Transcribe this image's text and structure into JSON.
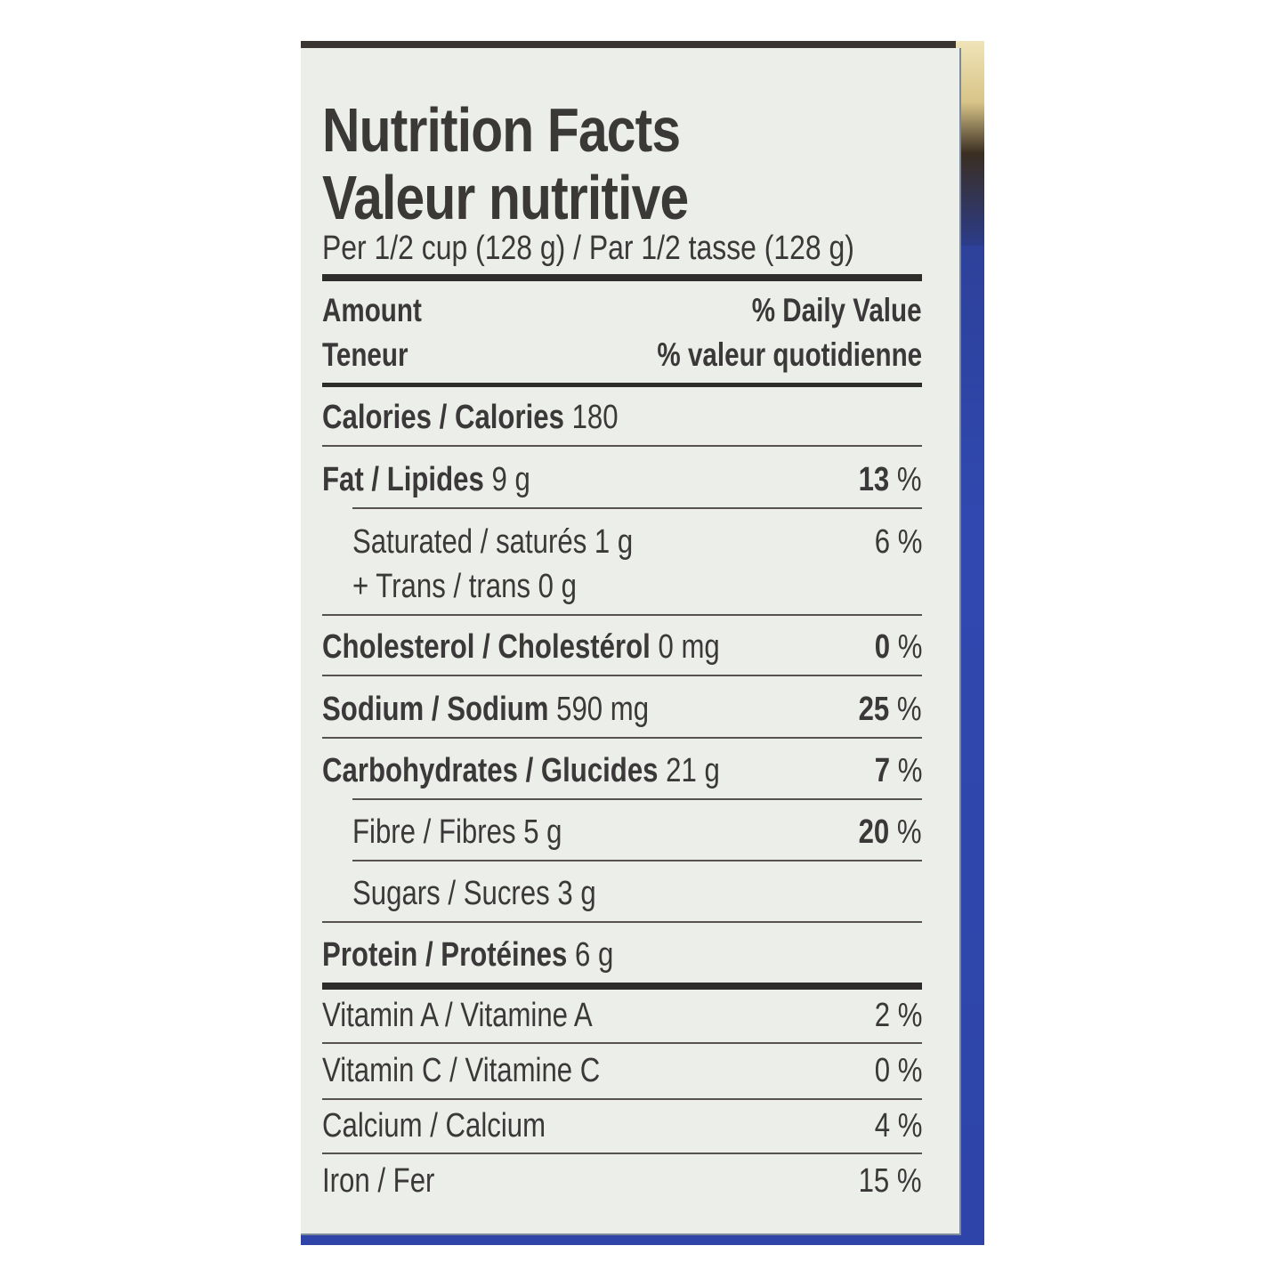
{
  "title_en": "Nutrition Facts",
  "title_fr": "Valeur nutritive",
  "serving": "Per 1/2 cup (128 g) / Par 1/2 tasse (128 g)",
  "header": {
    "amount_en": "Amount",
    "amount_fr": "Teneur",
    "dv_en": "% Daily Value",
    "dv_fr": "% valeur quotidienne"
  },
  "calories": {
    "label": "Calories / Calories",
    "value": "180"
  },
  "fat": {
    "label": "Fat / Lipides",
    "amount": "9 g",
    "dv": "13",
    "pct": "%"
  },
  "saturated": {
    "label": "Saturated / saturés 1 g",
    "dv": "6 %"
  },
  "trans": {
    "label": "+ Trans / trans 0 g"
  },
  "cholesterol": {
    "label": "Cholesterol / Cholestérol",
    "amount": "0 mg",
    "dv": "0",
    "pct": "%"
  },
  "sodium": {
    "label": "Sodium / Sodium",
    "amount": "590 mg",
    "dv": "25",
    "pct": "%"
  },
  "carbs": {
    "label": "Carbohydrates / Glucides",
    "amount": "21 g",
    "dv": "7",
    "pct": "%"
  },
  "fibre": {
    "label": "Fibre / Fibres 5 g",
    "dv": "20",
    "pct": "%"
  },
  "sugars": {
    "label": "Sugars / Sucres 3 g"
  },
  "protein": {
    "label": "Protein / Protéines",
    "amount": "6 g"
  },
  "vitamins": [
    {
      "label": "Vitamin A / Vitamine A",
      "dv": "2 %"
    },
    {
      "label": "Vitamin C / Vitamine C",
      "dv": "0 %"
    },
    {
      "label": "Calcium / Calcium",
      "dv": "4 %"
    },
    {
      "label": "Iron / Fer",
      "dv": "15 %"
    }
  ]
}
